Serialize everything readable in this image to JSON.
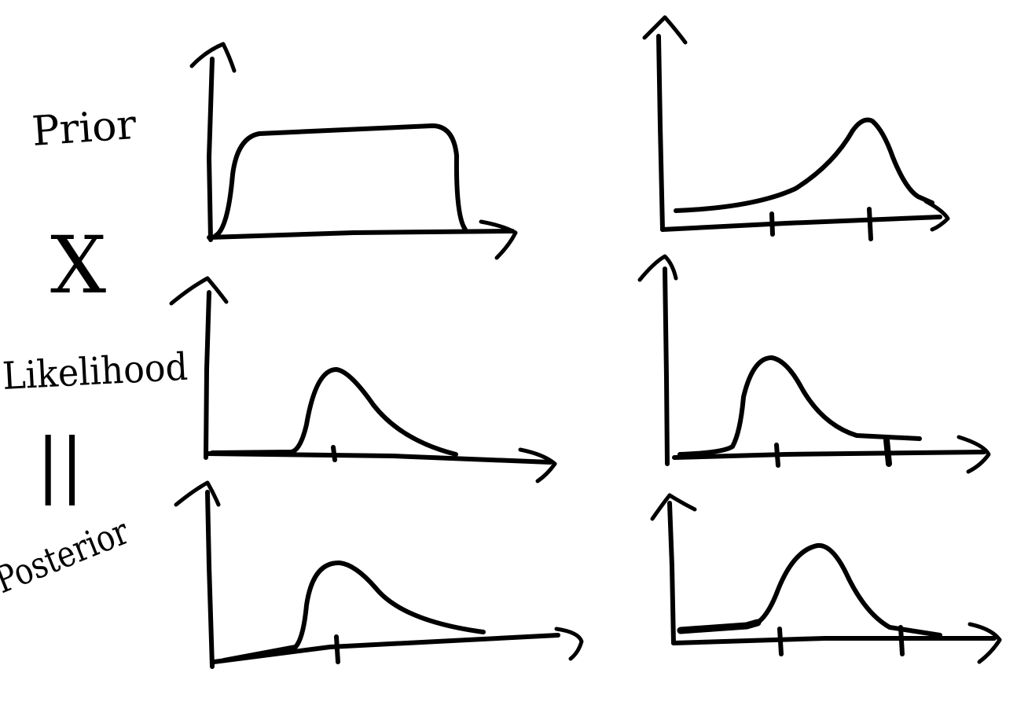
{
  "labels": {
    "prior": "Prior",
    "times": "X",
    "likelihood": "Likelihood",
    "equals": "||",
    "posterior": "Posterior"
  },
  "ink_color": "#000000",
  "background_color": "#ffffff",
  "columns": [
    {
      "column": "left",
      "rows": [
        {
          "role": "prior",
          "curve_shape": "uniform"
        },
        {
          "role": "likelihood",
          "curve_shape": "right-skewed peak"
        },
        {
          "role": "posterior",
          "curve_shape": "right-skewed peak"
        }
      ]
    },
    {
      "column": "right",
      "rows": [
        {
          "role": "prior",
          "curve_shape": "left-skewed peak"
        },
        {
          "role": "likelihood",
          "curve_shape": "right-skewed peak"
        },
        {
          "role": "posterior",
          "curve_shape": "symmetric peak"
        }
      ]
    }
  ]
}
